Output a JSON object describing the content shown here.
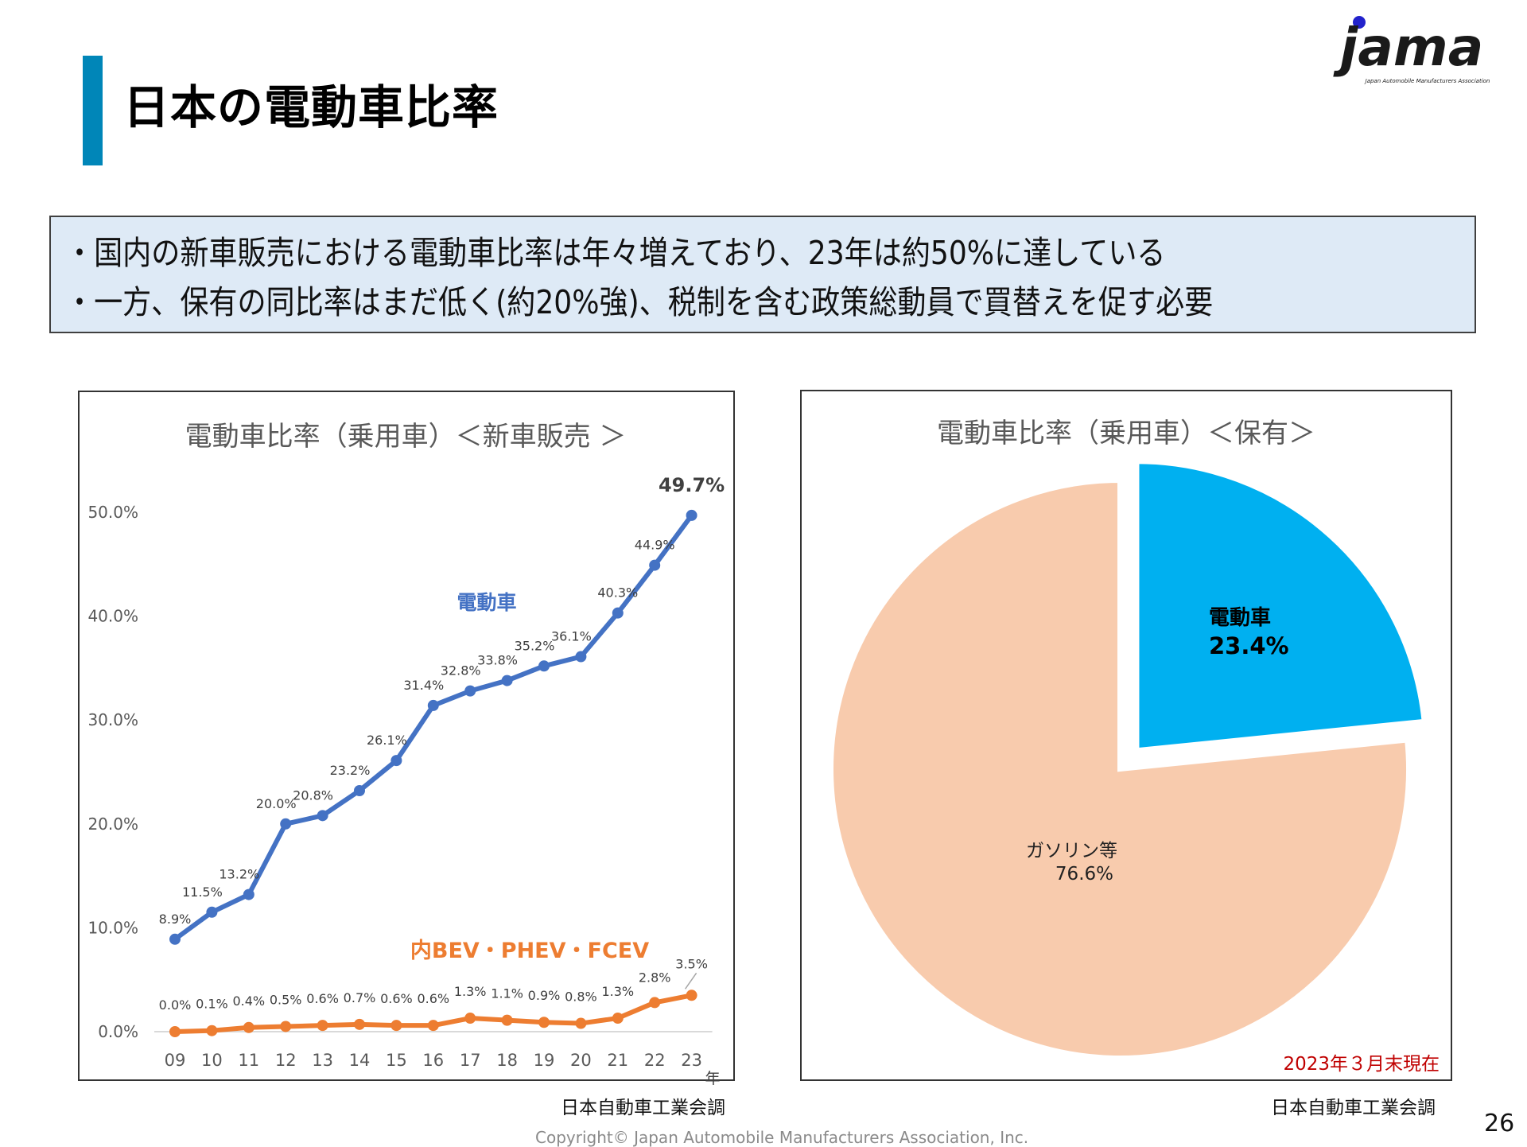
{
  "header": {
    "title": "日本の電動車比率",
    "logo_text": "jama",
    "logo_subtext": "Japan Automobile Manufacturers Association"
  },
  "summary": {
    "bullets": [
      "・国内の新車販売における電動車比率は年々増えており、23年は約50%に達している",
      "・一方、保有の同比率はまだ低く(約20%強)、税制を含む政策総動員で買替えを促す必要"
    ]
  },
  "colors": {
    "title_bar": "#0086B8",
    "electric_line": "#4472C4",
    "bev_line": "#ED7D31",
    "pie_electric": "#00B0F0",
    "pie_gasoline": "#F8CBAD",
    "summary_bg": "#DEEAF6",
    "date_note": "#C00000"
  },
  "chart_data": [
    {
      "type": "line",
      "title": "電動車比率（乗用車）＜新車販売 ＞",
      "xlabel": "年",
      "ylabel": "",
      "x": [
        "09",
        "10",
        "11",
        "12",
        "13",
        "14",
        "15",
        "16",
        "17",
        "18",
        "19",
        "20",
        "21",
        "22",
        "23"
      ],
      "ylim": [
        0,
        50
      ],
      "yticks": [
        "0.0%",
        "10.0%",
        "20.0%",
        "30.0%",
        "40.0%",
        "50.0%"
      ],
      "grid": false,
      "series": [
        {
          "name": "電動車",
          "values": [
            8.9,
            11.5,
            13.2,
            20.0,
            20.8,
            23.2,
            26.1,
            31.4,
            32.8,
            33.8,
            35.2,
            36.1,
            40.3,
            44.9,
            49.7
          ],
          "labels": [
            "8.9%",
            "11.5%",
            "13.2%",
            "20.0%",
            "20.8%",
            "23.2%",
            "26.1%",
            "31.4%",
            "32.8%",
            "33.8%",
            "35.2%",
            "36.1%",
            "40.3%",
            "44.9%",
            "49.7%"
          ]
        },
        {
          "name": "内BEV・PHEV・FCEV",
          "values": [
            0.0,
            0.1,
            0.4,
            0.5,
            0.6,
            0.7,
            0.6,
            0.6,
            1.3,
            1.1,
            0.9,
            0.8,
            1.3,
            2.8,
            3.5
          ],
          "labels": [
            "0.0%",
            "0.1%",
            "0.4%",
            "0.5%",
            "0.6%",
            "0.7%",
            "0.6%",
            "0.6%",
            "1.3%",
            "1.1%",
            "0.9%",
            "0.8%",
            "1.3%",
            "2.8%",
            "3.5%"
          ]
        }
      ],
      "source": "日本自動車工業会調"
    },
    {
      "type": "pie",
      "title": "電動車比率（乗用車）＜保有＞",
      "slices": [
        {
          "name": "電動車",
          "value": 23.4,
          "label": "23.4%"
        },
        {
          "name": "ガソリン等",
          "value": 76.6,
          "label": "76.6%"
        }
      ],
      "note": "2023年３月末現在",
      "source": "日本自動車工業会調"
    }
  ],
  "footer": {
    "copyright": "Copyright© Japan Automobile Manufacturers Association, Inc.",
    "page_number": "26"
  }
}
